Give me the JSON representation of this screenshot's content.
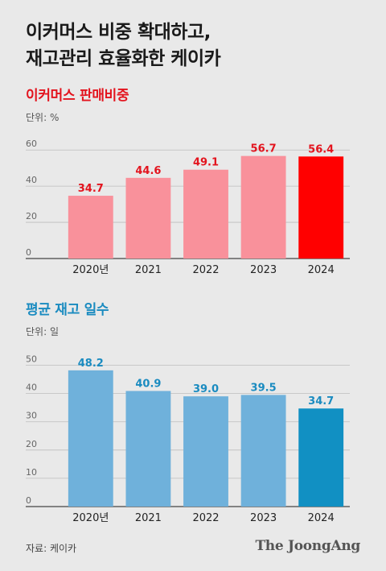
{
  "headline": {
    "line1": "이커머스 비중 확대하고,",
    "line2": "재고관리 효율화한 케이카"
  },
  "colors": {
    "chart1_bar": "#f9919b",
    "chart1_highlight": "#ff0000",
    "chart1_label": "#e3141e",
    "chart2_bar": "#6fb1db",
    "chart2_highlight": "#1190c3",
    "chart2_label": "#1a8bc0"
  },
  "chart_data": [
    {
      "type": "bar",
      "title": "이커머스 판매비중",
      "unit_label": "단위: %",
      "categories": [
        "2020년",
        "2021",
        "2022",
        "2023",
        "2024"
      ],
      "values": [
        34.7,
        44.6,
        49.1,
        56.7,
        56.4
      ],
      "value_labels": [
        "34.7",
        "44.6",
        "49.1",
        "56.7",
        "56.4"
      ],
      "yticks": [
        "0",
        "20",
        "40",
        "60"
      ],
      "ylim": [
        0,
        65
      ],
      "grid": true,
      "highlight_index": 4
    },
    {
      "type": "bar",
      "title": "평균 재고 일수",
      "unit_label": "단위: 일",
      "categories": [
        "2020년",
        "2021",
        "2022",
        "2023",
        "2024"
      ],
      "values": [
        48.2,
        40.9,
        39.0,
        39.5,
        34.7
      ],
      "value_labels": [
        "48.2",
        "40.9",
        "39.0",
        "39.5",
        "34.7"
      ],
      "yticks": [
        "0",
        "10",
        "20",
        "30",
        "40",
        "50"
      ],
      "ylim": [
        0,
        53
      ],
      "grid": true,
      "highlight_index": 4
    }
  ],
  "footer": {
    "source": "자료: 케이카",
    "brand": "The JoongAng"
  }
}
